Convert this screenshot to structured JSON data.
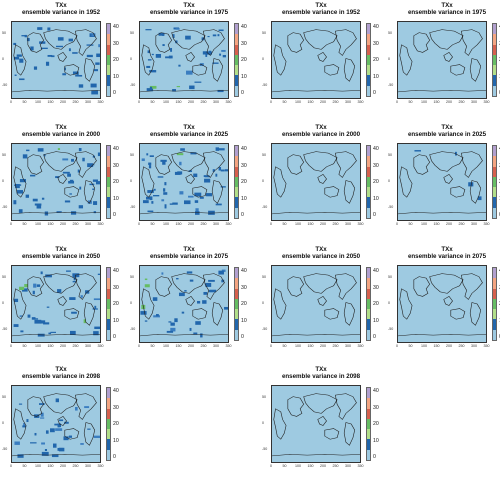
{
  "figure": {
    "title_line1": "TXx",
    "subtitle_prefix": "ensemble variance in",
    "colorbar_ticks": [
      "40",
      "30",
      "20",
      "10",
      "0"
    ],
    "colorbar_colors": [
      "#b2a0cf",
      "#f4a582",
      "#d6604d",
      "#66bd63",
      "#b2df8a",
      "#2166ac",
      "#9ecae1"
    ],
    "x_ticks": [
      "0",
      "50",
      "100",
      "150",
      "200",
      "250",
      "300",
      "350"
    ],
    "y_ticks": [
      "50",
      "0",
      "-50"
    ],
    "panels": [
      {
        "year": "1952",
        "title_line1": "TXx",
        "subtitle": "ensemble variance in 1952",
        "density": 0.55
      },
      {
        "year": "1975",
        "title_line1": "TXx",
        "subtitle": "ensemble variance in 1975",
        "density": 0.6
      },
      {
        "year": "1952",
        "title_line1": "TXx",
        "subtitle": "ensemble variance in 1952",
        "density": 0.0
      },
      {
        "year": "1975",
        "title_line1": "TXx",
        "subtitle": "ensemble variance in 1975",
        "density": 0.0
      },
      {
        "year": "2000",
        "title_line1": "TXx",
        "subtitle": "ensemble variance in 2000",
        "density": 0.65
      },
      {
        "year": "2025",
        "title_line1": "TXx",
        "subtitle": "ensemble variance in 2025",
        "density": 0.75
      },
      {
        "year": "2000",
        "title_line1": "TXx",
        "subtitle": "ensemble variance in 2000",
        "density": 0.0
      },
      {
        "year": "2025",
        "title_line1": "TXx",
        "subtitle": "ensemble variance in 2025",
        "density": 0.05
      },
      {
        "year": "2050",
        "title_line1": "TXx",
        "subtitle": "ensemble variance in 2050",
        "density": 0.55
      },
      {
        "year": "2075",
        "title_line1": "TXx",
        "subtitle": "ensemble variance in 2075",
        "density": 0.5
      },
      {
        "year": "2050",
        "title_line1": "TXx",
        "subtitle": "ensemble variance in 2050",
        "density": 0.0
      },
      {
        "year": "2075",
        "title_line1": "TXx",
        "subtitle": "ensemble variance in 2075",
        "density": 0.0
      },
      {
        "year": "2098",
        "title_line1": "TXx",
        "subtitle": "ensemble variance in 2098",
        "density": 0.5
      },
      {
        "year": "2098",
        "title_line1": "TXx",
        "subtitle": "ensemble variance in 2098",
        "density": 0.0
      }
    ]
  }
}
